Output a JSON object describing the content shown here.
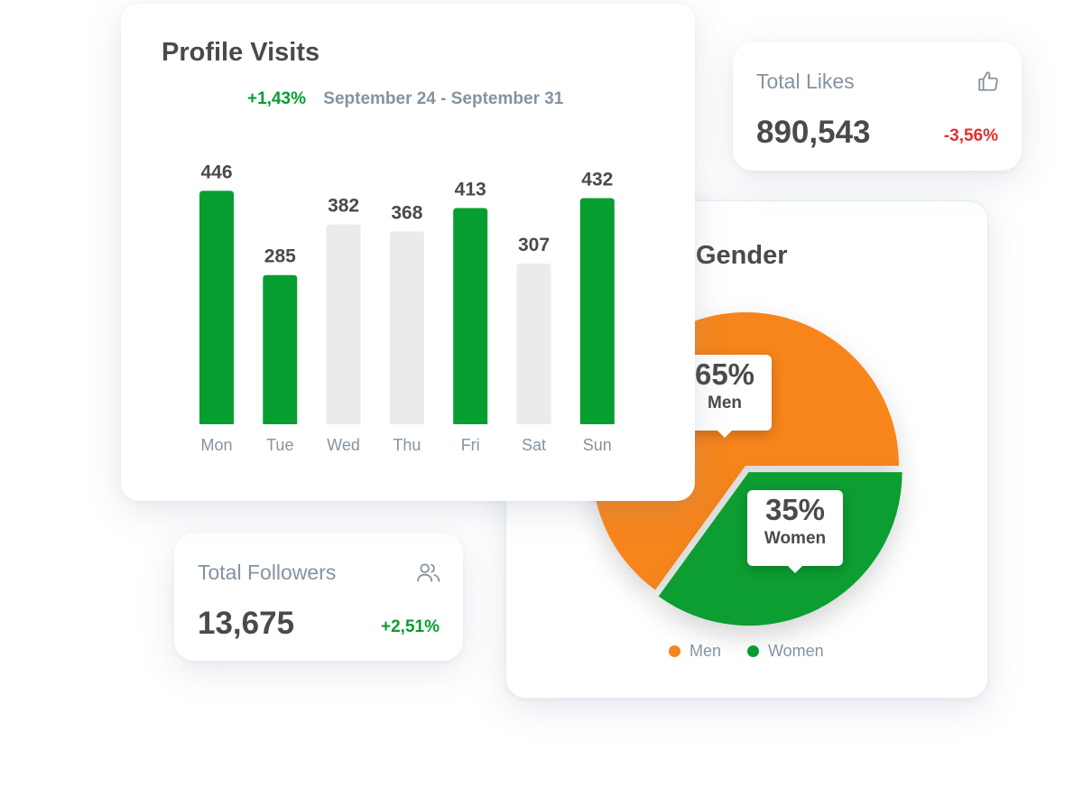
{
  "profile_visits": {
    "title": "Profile Visits",
    "change": "+1,43%",
    "date_range": "September 24 - September 31"
  },
  "total_likes": {
    "label": "Total Likes",
    "value": "890,543",
    "change": "-3,56%",
    "icon": "thumbs-up-icon"
  },
  "total_followers": {
    "label": "Total Followers",
    "value": "13,675",
    "change": "+2,51%",
    "icon": "users-icon"
  },
  "gender": {
    "title": "Gender"
  },
  "colors": {
    "green": "#079e30",
    "gray_bar": "#ebebeb",
    "orange": "#f7851d",
    "red": "#e62e2e",
    "text": "#4a4a4a",
    "muted": "#8593a0"
  },
  "chart_data": [
    {
      "type": "bar",
      "title": "Profile Visits",
      "categories": [
        "Mon",
        "Tue",
        "Wed",
        "Thu",
        "Fri",
        "Sat",
        "Sun"
      ],
      "values": [
        446,
        285,
        382,
        368,
        413,
        307,
        432
      ],
      "highlighted": [
        true,
        true,
        false,
        false,
        true,
        false,
        true
      ],
      "ylim": [
        0,
        500
      ],
      "grid": false
    },
    {
      "type": "pie",
      "title": "Gender",
      "labels": [
        "Men",
        "Women"
      ],
      "values": [
        65,
        35
      ],
      "value_labels": [
        "65%",
        "35%"
      ],
      "colors": [
        "#f7851d",
        "#079e30"
      ],
      "legend": "bottom"
    }
  ]
}
